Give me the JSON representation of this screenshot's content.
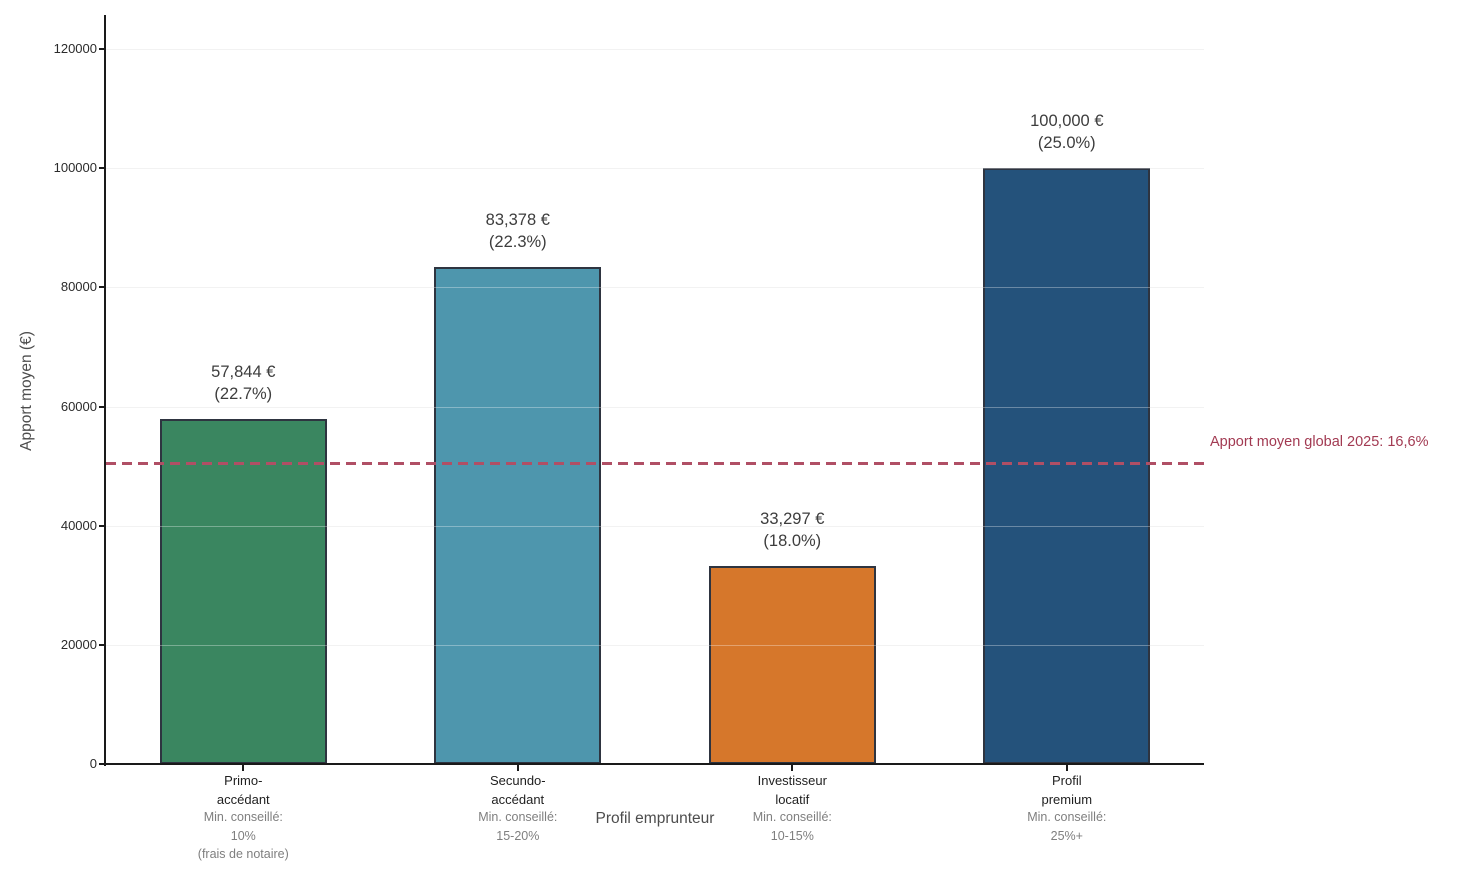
{
  "chart_data": {
    "type": "bar",
    "title": "",
    "xlabel": "Profil emprunteur",
    "ylabel": "Apport moyen (€)",
    "ylim": [
      0,
      125400
    ],
    "yticks": [
      0,
      20000,
      40000,
      60000,
      80000,
      100000,
      120000
    ],
    "grid": true,
    "legend": "none",
    "categories": [
      "Primo-\naccédant",
      "Secundo-\naccédant",
      "Investisseur\nlocatif",
      "Profil\npremium"
    ],
    "category_notes": [
      "Min. conseillé:\n10%\n(frais de notaire)",
      "Min. conseillé:\n15-20%",
      "Min. conseillé:\n10-15%",
      "Min. conseillé:\n25%+"
    ],
    "values": [
      57844,
      83378,
      33297,
      100000
    ],
    "value_labels": [
      "57,844 €\n(22.7%)",
      "83,378 €\n(22.3%)",
      "33,297 €\n(18.0%)",
      "100,000 €\n(25.0%)"
    ],
    "bar_colors": [
      "#3a8660",
      "#4e96ad",
      "#d6772b",
      "#24527b"
    ],
    "bar_edge_color": "#2e3440",
    "reference_line": {
      "value": 50400,
      "label": "Apport moyen global 2025: 16,6%",
      "line_color": "#b04f65",
      "label_color": "#a23a52",
      "style": "dashed"
    },
    "colors": {
      "grid": "#ececec",
      "axis": "#1a1a1a",
      "tick_label": "#2b2b2b",
      "note": "#7f7f7f",
      "axis_title": "#4d4d4d",
      "value_label": "#3d3d3d",
      "background": "#ffffff"
    }
  }
}
